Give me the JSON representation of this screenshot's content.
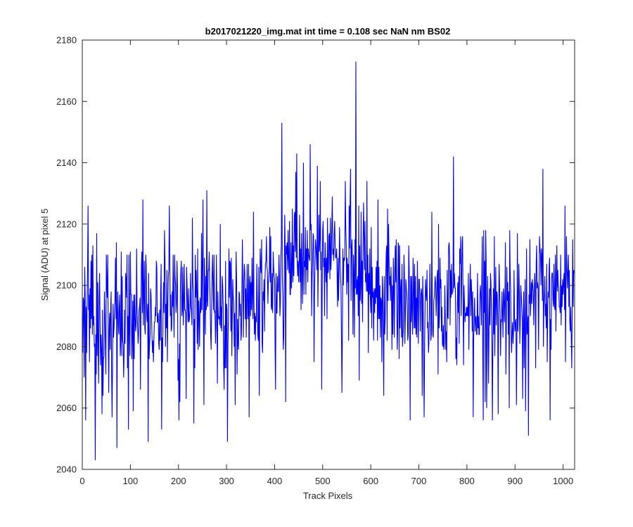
{
  "figure": {
    "title": "b2017021220_img.mat int time = 0.108 sec  NaN nm BS02"
  },
  "chart_data": {
    "type": "line",
    "title": "b2017021220_img.mat int time = 0.108 sec  NaN nm BS02",
    "xlabel": "Track Pixels",
    "ylabel": "Signal (ADU) at pixel 5",
    "xlim": [
      0,
      1024
    ],
    "ylim": [
      2040,
      2180
    ],
    "xticks": [
      0,
      100,
      200,
      300,
      400,
      500,
      600,
      700,
      800,
      900,
      1000
    ],
    "yticks": [
      2040,
      2060,
      2080,
      2100,
      2120,
      2140,
      2160,
      2180
    ],
    "grid": false,
    "legend": "none",
    "series": [
      {
        "color": "#0000ff",
        "x_start": 0,
        "x_step": 1,
        "n_points": 1024,
        "segment_means": [
          [
            0,
            2092
          ],
          [
            50,
            2089
          ],
          [
            100,
            2091
          ],
          [
            150,
            2092
          ],
          [
            200,
            2093
          ],
          [
            250,
            2094
          ],
          [
            300,
            2094
          ],
          [
            350,
            2096
          ],
          [
            400,
            2099
          ],
          [
            450,
            2109
          ],
          [
            500,
            2109
          ],
          [
            550,
            2106
          ],
          [
            600,
            2098
          ],
          [
            650,
            2096
          ],
          [
            700,
            2094
          ],
          [
            750,
            2094
          ],
          [
            800,
            2093
          ],
          [
            850,
            2093
          ],
          [
            900,
            2092
          ],
          [
            950,
            2095
          ],
          [
            1023,
            2096
          ]
        ],
        "noise_std": 11,
        "highlight_points": [
          [
            1,
            2078
          ],
          [
            4,
            2070
          ],
          [
            7,
            2056
          ],
          [
            12,
            2126
          ],
          [
            22,
            2113
          ],
          [
            27,
            2043
          ],
          [
            30,
            2117
          ],
          [
            43,
            2064
          ],
          [
            53,
            2110
          ],
          [
            62,
            2057
          ],
          [
            72,
            2047
          ],
          [
            81,
            2111
          ],
          [
            96,
            2053
          ],
          [
            106,
            2059
          ],
          [
            121,
            2066
          ],
          [
            126,
            2128
          ],
          [
            137,
            2049
          ],
          [
            165,
            2053
          ],
          [
            171,
            2118
          ],
          [
            201,
            2056
          ],
          [
            216,
            2063
          ],
          [
            232,
            2055
          ],
          [
            259,
            2131
          ],
          [
            302,
            2049
          ],
          [
            318,
            2061
          ],
          [
            347,
            2057
          ],
          [
            368,
            2064
          ],
          [
            402,
            2066
          ],
          [
            415,
            2153
          ],
          [
            423,
            2062
          ],
          [
            446,
            2143
          ],
          [
            474,
            2146
          ],
          [
            482,
            2075
          ],
          [
            495,
            2134
          ],
          [
            498,
            2066
          ],
          [
            510,
            2122
          ],
          [
            540,
            2065
          ],
          [
            558,
            2138
          ],
          [
            569,
            2173
          ],
          [
            576,
            2069
          ],
          [
            592,
            2134
          ],
          [
            615,
            2128
          ],
          [
            627,
            2064
          ],
          [
            637,
            2120
          ],
          [
            682,
            2056
          ],
          [
            707,
            2064
          ],
          [
            711,
            2057
          ],
          [
            741,
            2120
          ],
          [
            758,
            2075
          ],
          [
            772,
            2142
          ],
          [
            791,
            2116
          ],
          [
            813,
            2057
          ],
          [
            834,
            2056
          ],
          [
            839,
            2118
          ],
          [
            865,
            2058
          ],
          [
            880,
            2114
          ],
          [
            888,
            2060
          ],
          [
            905,
            2117
          ],
          [
            922,
            2059
          ],
          [
            928,
            2051
          ],
          [
            945,
            2113
          ],
          [
            958,
            2138
          ],
          [
            973,
            2056
          ],
          [
            987,
            2113
          ],
          [
            1004,
            2126
          ],
          [
            1018,
            2073
          ],
          [
            1020,
            2115
          ],
          [
            1023,
            2104
          ]
        ]
      }
    ]
  }
}
